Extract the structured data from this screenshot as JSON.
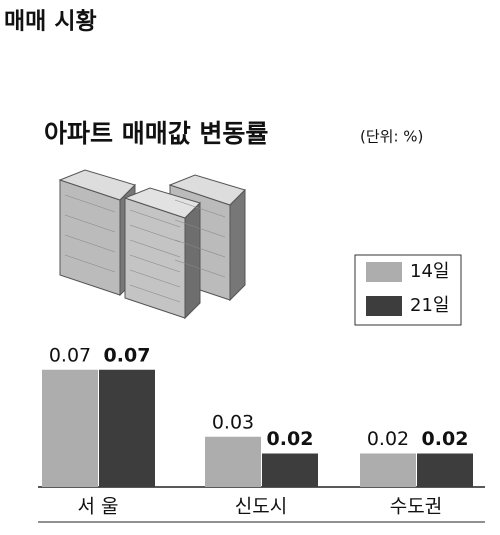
{
  "header": "매매 시황",
  "chart_data": {
    "type": "bar",
    "title": "아파트 매매값 변동률",
    "subtitle": "(단위: %)",
    "categories": [
      "서 울",
      "신도시",
      "수도권"
    ],
    "series": [
      {
        "name": "14일",
        "color": "#adadad",
        "values": [
          0.07,
          0.03,
          0.02
        ]
      },
      {
        "name": "21일",
        "color": "#3d3d3d",
        "values": [
          0.07,
          0.02,
          0.02
        ]
      }
    ],
    "legend": "right"
  }
}
